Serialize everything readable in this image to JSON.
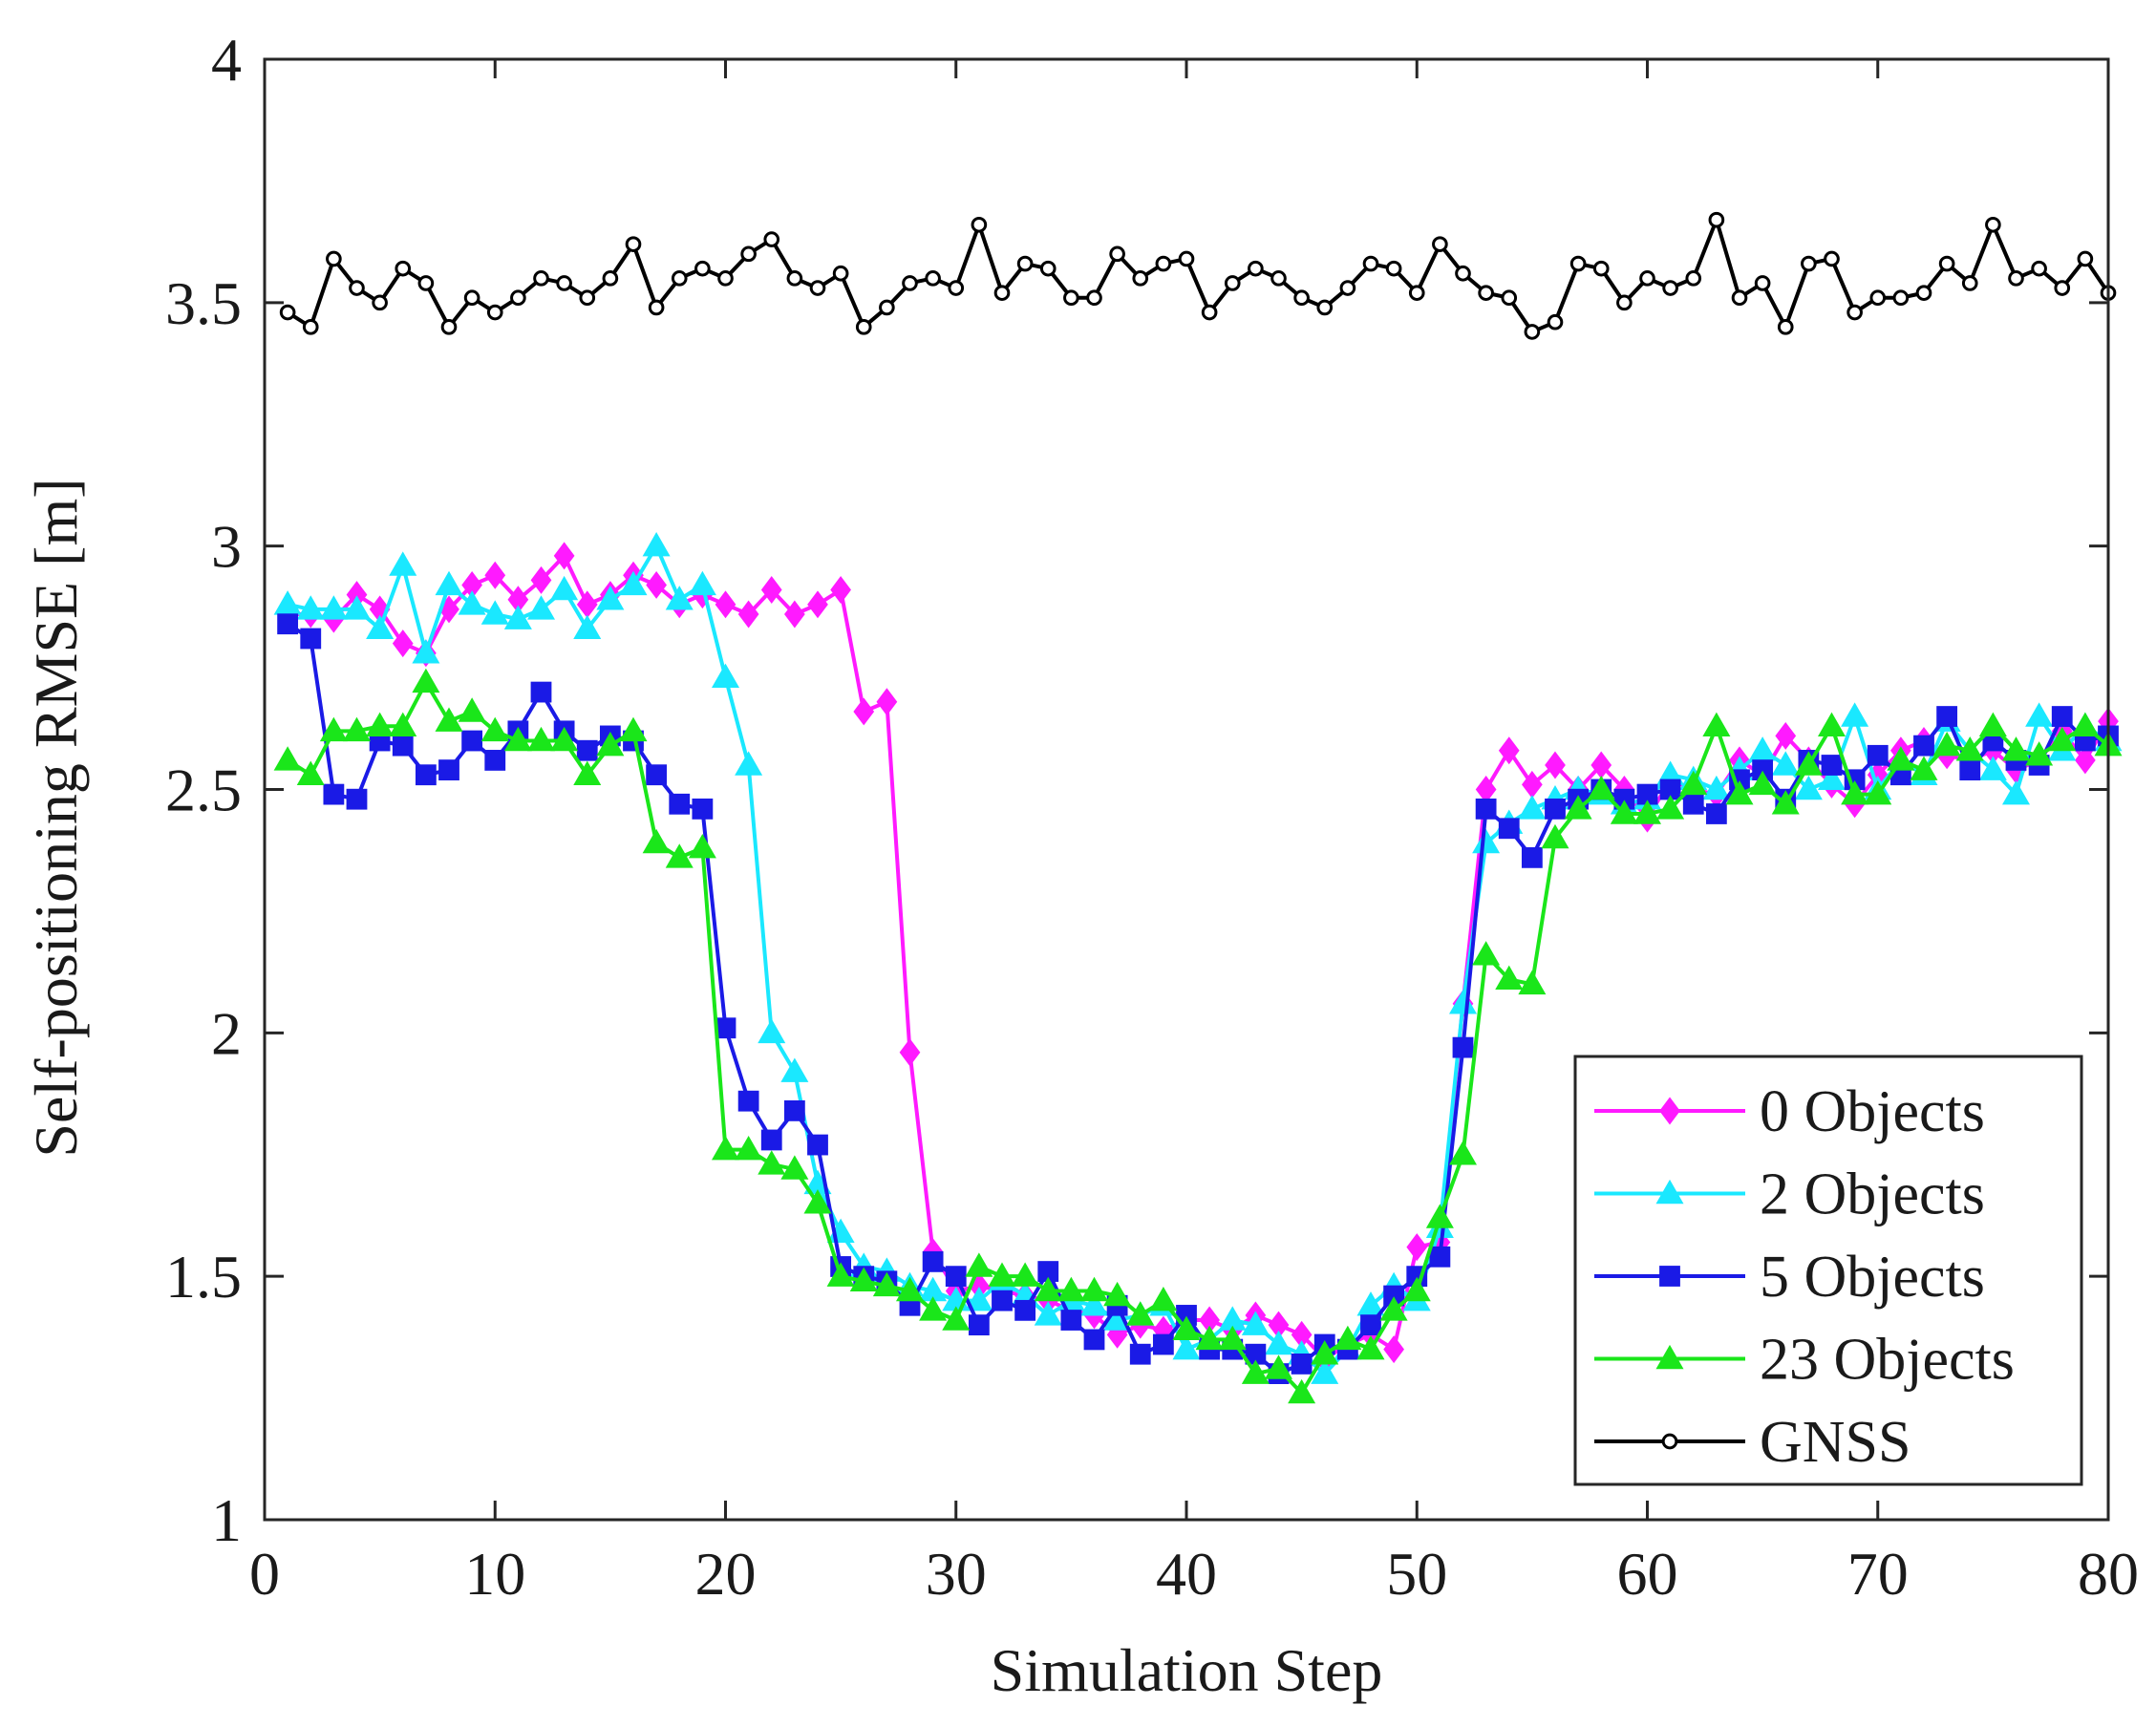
{
  "chart_data": {
    "type": "line",
    "title": "",
    "xlabel": "Simulation Step",
    "ylabel": "Self-positioning RMSE [m]",
    "xlim": [
      0,
      80
    ],
    "ylim": [
      1,
      4
    ],
    "x_ticks": [
      0,
      10,
      20,
      30,
      40,
      50,
      60,
      70,
      80
    ],
    "y_ticks": [
      1,
      1.5,
      2,
      2.5,
      3,
      3.5,
      4
    ],
    "x_tick_labels": [
      "0",
      "10",
      "20",
      "30",
      "40",
      "50",
      "60",
      "70",
      "80"
    ],
    "y_tick_labels": [
      "1",
      "1.5",
      "2",
      "2.5",
      "3",
      "3.5",
      "4"
    ],
    "grid": false,
    "legend_position": "bottom-right",
    "x": [
      1,
      2,
      3,
      4,
      5,
      6,
      7,
      8,
      9,
      10,
      11,
      12,
      13,
      14,
      15,
      16,
      17,
      18,
      19,
      20,
      21,
      22,
      23,
      24,
      25,
      26,
      27,
      28,
      29,
      30,
      31,
      32,
      33,
      34,
      35,
      36,
      37,
      38,
      39,
      40,
      41,
      42,
      43,
      44,
      45,
      46,
      47,
      48,
      49,
      50,
      51,
      52,
      53,
      54,
      55,
      56,
      57,
      58,
      59,
      60,
      61,
      62,
      63,
      64,
      65,
      66,
      67,
      68,
      69,
      70,
      71,
      72,
      73,
      74,
      75,
      76,
      77,
      78,
      79,
      80
    ],
    "series": [
      {
        "name": "0 Objects",
        "color": "#ff1aff",
        "marker": "diamond",
        "values": [
          2.86,
          2.86,
          2.85,
          2.9,
          2.87,
          2.8,
          2.78,
          2.87,
          2.92,
          2.94,
          2.89,
          2.93,
          2.98,
          2.88,
          2.9,
          2.94,
          2.92,
          2.88,
          2.9,
          2.88,
          2.86,
          2.91,
          2.86,
          2.88,
          2.91,
          2.66,
          2.68,
          1.96,
          1.55,
          1.47,
          1.48,
          1.47,
          1.46,
          1.45,
          1.43,
          1.42,
          1.38,
          1.4,
          1.39,
          1.41,
          1.41,
          1.39,
          1.42,
          1.4,
          1.38,
          1.33,
          1.36,
          1.38,
          1.35,
          1.56,
          1.57,
          2.06,
          2.5,
          2.58,
          2.51,
          2.55,
          2.5,
          2.55,
          2.5,
          2.44,
          2.52,
          2.5,
          2.49,
          2.56,
          2.53,
          2.61,
          2.56,
          2.51,
          2.47,
          2.53,
          2.58,
          2.6,
          2.57,
          2.56,
          2.58,
          2.54,
          2.56,
          2.62,
          2.56,
          2.64
        ]
      },
      {
        "name": "2 Objects",
        "color": "#1ae8ff",
        "marker": "triangle",
        "values": [
          2.88,
          2.87,
          2.87,
          2.87,
          2.83,
          2.96,
          2.78,
          2.92,
          2.88,
          2.86,
          2.85,
          2.87,
          2.91,
          2.83,
          2.89,
          2.92,
          3.0,
          2.89,
          2.92,
          2.73,
          2.55,
          2.0,
          1.92,
          1.69,
          1.59,
          1.52,
          1.51,
          1.48,
          1.47,
          1.45,
          1.45,
          1.49,
          1.46,
          1.42,
          1.45,
          1.44,
          1.41,
          1.42,
          1.44,
          1.35,
          1.37,
          1.41,
          1.4,
          1.36,
          1.34,
          1.3,
          1.35,
          1.44,
          1.48,
          1.45,
          1.6,
          2.06,
          2.39,
          2.43,
          2.46,
          2.48,
          2.5,
          2.49,
          2.47,
          2.48,
          2.53,
          2.52,
          2.5,
          2.54,
          2.58,
          2.55,
          2.5,
          2.52,
          2.65,
          2.5,
          2.56,
          2.53,
          2.64,
          2.58,
          2.54,
          2.49,
          2.65,
          2.58,
          2.63,
          2.6
        ]
      },
      {
        "name": "5 Objects",
        "color": "#1a1ae6",
        "marker": "square",
        "values": [
          2.84,
          2.81,
          2.49,
          2.48,
          2.6,
          2.59,
          2.53,
          2.54,
          2.6,
          2.56,
          2.62,
          2.7,
          2.62,
          2.58,
          2.61,
          2.6,
          2.53,
          2.47,
          2.46,
          2.01,
          1.86,
          1.78,
          1.84,
          1.77,
          1.52,
          1.5,
          1.49,
          1.44,
          1.53,
          1.5,
          1.4,
          1.45,
          1.43,
          1.51,
          1.41,
          1.37,
          1.44,
          1.34,
          1.36,
          1.42,
          1.35,
          1.35,
          1.34,
          1.3,
          1.32,
          1.36,
          1.35,
          1.4,
          1.46,
          1.5,
          1.54,
          1.97,
          2.46,
          2.42,
          2.36,
          2.46,
          2.48,
          2.5,
          2.48,
          2.49,
          2.5,
          2.47,
          2.45,
          2.52,
          2.54,
          2.48,
          2.56,
          2.55,
          2.52,
          2.57,
          2.53,
          2.59,
          2.65,
          2.54,
          2.6,
          2.56,
          2.55,
          2.65,
          2.6,
          2.61
        ]
      },
      {
        "name": "23 Objects",
        "color": "#1ae61a",
        "marker": "triangle",
        "values": [
          2.56,
          2.53,
          2.62,
          2.62,
          2.63,
          2.63,
          2.72,
          2.64,
          2.66,
          2.62,
          2.6,
          2.6,
          2.6,
          2.53,
          2.59,
          2.62,
          2.39,
          2.36,
          2.38,
          1.76,
          1.76,
          1.73,
          1.72,
          1.65,
          1.5,
          1.49,
          1.48,
          1.47,
          1.43,
          1.41,
          1.52,
          1.5,
          1.5,
          1.47,
          1.47,
          1.47,
          1.46,
          1.42,
          1.45,
          1.39,
          1.37,
          1.37,
          1.3,
          1.31,
          1.26,
          1.34,
          1.37,
          1.35,
          1.43,
          1.47,
          1.62,
          1.75,
          2.16,
          2.11,
          2.1,
          2.4,
          2.46,
          2.5,
          2.45,
          2.45,
          2.46,
          2.51,
          2.63,
          2.49,
          2.51,
          2.47,
          2.55,
          2.63,
          2.49,
          2.49,
          2.56,
          2.54,
          2.59,
          2.58,
          2.63,
          2.58,
          2.57,
          2.6,
          2.63,
          2.59
        ]
      },
      {
        "name": "GNSS",
        "color": "#000000",
        "marker": "circle",
        "values": [
          3.48,
          3.45,
          3.59,
          3.53,
          3.5,
          3.57,
          3.54,
          3.45,
          3.51,
          3.48,
          3.51,
          3.55,
          3.54,
          3.51,
          3.55,
          3.62,
          3.49,
          3.55,
          3.57,
          3.55,
          3.6,
          3.63,
          3.55,
          3.53,
          3.56,
          3.45,
          3.49,
          3.54,
          3.55,
          3.53,
          3.66,
          3.52,
          3.58,
          3.57,
          3.51,
          3.51,
          3.6,
          3.55,
          3.58,
          3.59,
          3.48,
          3.54,
          3.57,
          3.55,
          3.51,
          3.49,
          3.53,
          3.58,
          3.57,
          3.52,
          3.62,
          3.56,
          3.52,
          3.51,
          3.44,
          3.46,
          3.58,
          3.57,
          3.5,
          3.55,
          3.53,
          3.55,
          3.67,
          3.51,
          3.54,
          3.45,
          3.58,
          3.59,
          3.48,
          3.51,
          3.51,
          3.52,
          3.58,
          3.54,
          3.66,
          3.55,
          3.57,
          3.53,
          3.59,
          3.52
        ]
      }
    ]
  }
}
